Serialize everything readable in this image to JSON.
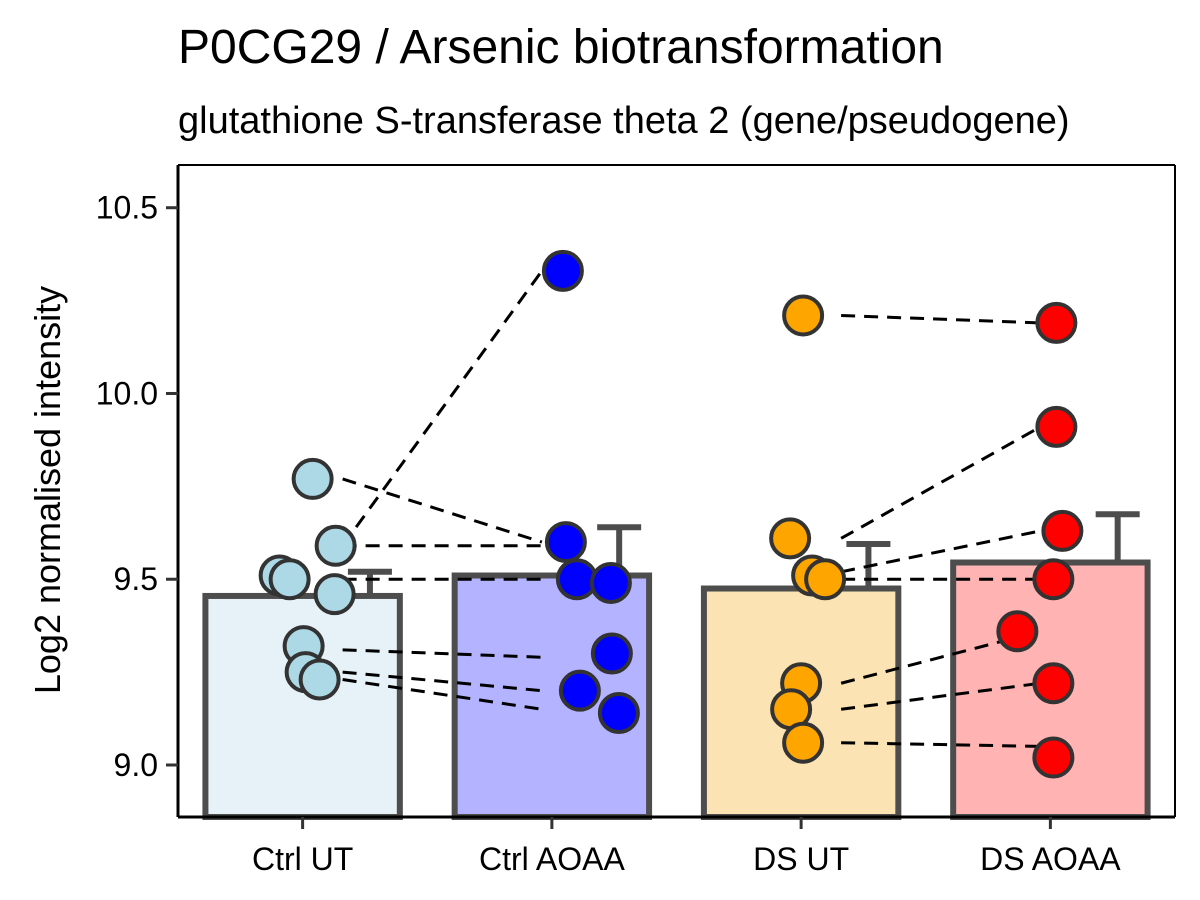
{
  "chart_data": {
    "type": "bar",
    "title": "P0CG29 / Arsenic biotransformation",
    "subtitle": "glutathione S-transferase theta 2 (gene/pseudogene)",
    "xlabel": "",
    "ylabel": "Log2 normalised intensity",
    "ylim": [
      8.86,
      10.615
    ],
    "yticks": [
      "9.0",
      "9.5",
      "10.0",
      "10.5"
    ],
    "grid": false,
    "legend": "none",
    "categories": [
      "Ctrl UT",
      "Ctrl AOAA",
      "DS UT",
      "DS AOAA"
    ],
    "bar_colors": [
      "#e6f2f8",
      "#b3b3ff",
      "#fbe3b3",
      "#ffb3b3"
    ],
    "point_colors": [
      "#add8e6",
      "#0000ff",
      "#ffa500",
      "#ff0000"
    ],
    "means": [
      9.455,
      9.51,
      9.475,
      9.545
    ],
    "error_upper": [
      9.52,
      9.64,
      9.595,
      9.675
    ],
    "points": [
      [
        9.77,
        9.59,
        9.51,
        9.5,
        9.46,
        9.32,
        9.25,
        9.23
      ],
      [
        10.33,
        9.6,
        9.5,
        9.49,
        9.3,
        9.2,
        9.14
      ],
      [
        10.21,
        9.61,
        9.51,
        9.5,
        9.22,
        9.15,
        9.06
      ],
      [
        10.19,
        9.91,
        9.63,
        9.5,
        9.36,
        9.22,
        9.02
      ]
    ],
    "pairs": [
      {
        "groups": [
          0,
          1
        ],
        "y": [
          9.77,
          9.6
        ]
      },
      {
        "groups": [
          0,
          1
        ],
        "y": [
          9.59,
          10.33
        ]
      },
      {
        "groups": [
          0,
          1
        ],
        "y": [
          9.59,
          9.59
        ]
      },
      {
        "groups": [
          0,
          1
        ],
        "y": [
          9.5,
          9.5
        ]
      },
      {
        "groups": [
          0,
          1
        ],
        "y": [
          9.31,
          9.29
        ]
      },
      {
        "groups": [
          0,
          1
        ],
        "y": [
          9.25,
          9.2
        ]
      },
      {
        "groups": [
          0,
          1
        ],
        "y": [
          9.23,
          9.15
        ]
      },
      {
        "groups": [
          2,
          3
        ],
        "y": [
          10.21,
          10.19
        ]
      },
      {
        "groups": [
          2,
          3
        ],
        "y": [
          9.61,
          9.91
        ]
      },
      {
        "groups": [
          2,
          3
        ],
        "y": [
          9.52,
          9.63
        ]
      },
      {
        "groups": [
          2,
          3
        ],
        "y": [
          9.5,
          9.5
        ]
      },
      {
        "groups": [
          2,
          3
        ],
        "y": [
          9.22,
          9.36
        ]
      },
      {
        "groups": [
          2,
          3
        ],
        "y": [
          9.15,
          9.22
        ]
      },
      {
        "groups": [
          2,
          3
        ],
        "y": [
          9.06,
          9.05
        ]
      }
    ]
  }
}
